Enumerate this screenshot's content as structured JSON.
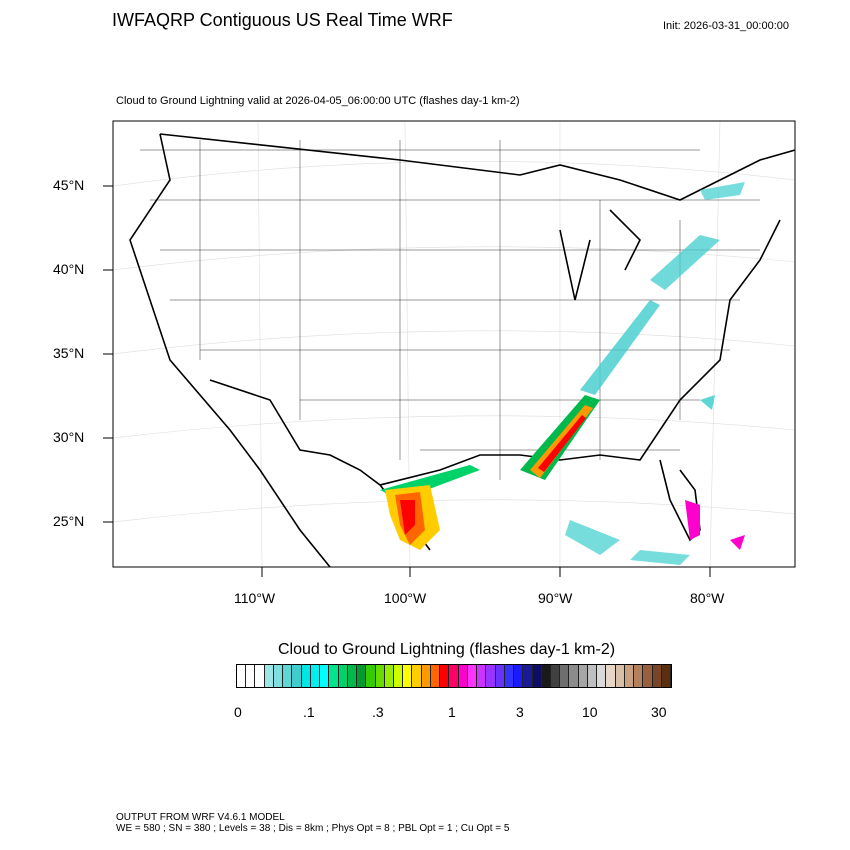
{
  "header": {
    "title": "IWFAQRP Contiguous US Real Time WRF",
    "init": "Init: 2026-03-31_00:00:00",
    "subtitle": "Cloud to Ground Lightning valid at 2026-04-05_06:00:00 UTC   (flashes day-1 km-2)"
  },
  "map": {
    "lat_labels": [
      "45°N",
      "40°N",
      "35°N",
      "30°N",
      "25°N"
    ],
    "lon_labels": [
      "110°W",
      "100°W",
      "90°W",
      "80°W"
    ]
  },
  "colorbar": {
    "title": "Cloud to Ground Lightning  (flashes day-1 km-2)",
    "labels": [
      "0",
      ".1",
      ".3",
      "1",
      "3",
      "10",
      "30"
    ],
    "colors": [
      "#ffffff",
      "#ffffff",
      "#ffffff",
      "#9ee6e6",
      "#7fdede",
      "#5fd6d6",
      "#40cccc",
      "#00e5e5",
      "#00f0f0",
      "#00ffff",
      "#00e68c",
      "#00d26a",
      "#00b84c",
      "#009a30",
      "#33cc00",
      "#66dd00",
      "#99ee00",
      "#ccff00",
      "#ffff00",
      "#ffcc00",
      "#ff9900",
      "#ff6600",
      "#ff0000",
      "#ff0066",
      "#ff00cc",
      "#ff33ff",
      "#cc33ff",
      "#9933ff",
      "#6633ff",
      "#3333ff",
      "#1a1aff",
      "#1a1a99",
      "#0d0d66",
      "#1a1a1a",
      "#404040",
      "#6e6e6e",
      "#8c8c8c",
      "#a6a6a6",
      "#bfbfbf",
      "#d9d9d9",
      "#e6d6c8",
      "#d9bfa6",
      "#c9a080",
      "#b38060",
      "#996040",
      "#7a4526",
      "#5c2e10"
    ]
  },
  "footer": {
    "line1": "OUTPUT FROM WRF V4.6.1 MODEL",
    "line2": "WE = 580 ; SN = 380 ; Levels = 38 ; Dis = 8km ; Phys Opt = 8 ; PBL Opt = 1 ; Cu Opt = 5"
  }
}
